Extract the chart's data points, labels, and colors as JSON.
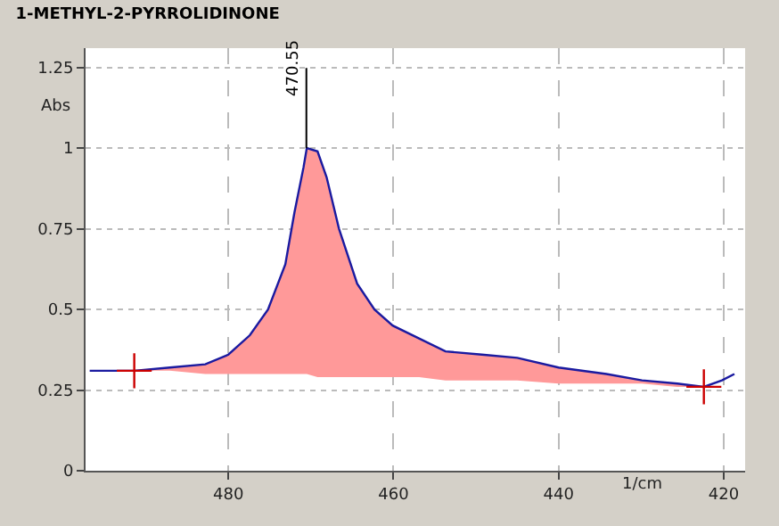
{
  "chart_data": {
    "type": "line",
    "title": "1-METHYL-2-PYRROLIDINONE",
    "xlabel": "1/cm",
    "ylabel": "Abs",
    "xlim": [
      497.3,
      417.4
    ],
    "xticks": [
      480,
      460,
      440,
      420
    ],
    "ylim": [
      0,
      1.31
    ],
    "yticks": [
      0,
      0.25,
      0.5,
      0.75,
      1,
      1.25
    ],
    "grid": true,
    "series": [
      {
        "color": "#1a1aa0",
        "x": [
          496.8,
          491.4,
          487.1,
          482.8,
          480,
          477.4,
          475.2,
          473.1,
          472.0,
          470.9,
          470.5,
          469.2,
          468.1,
          466.6,
          464.4,
          462.3,
          460.1,
          456.9,
          453.7,
          449.3,
          445.0,
          440.0,
          434.2,
          429.9,
          425.6,
          422.4,
          420.2,
          418.7
        ],
        "values": [
          0.31,
          0.31,
          0.32,
          0.33,
          0.36,
          0.42,
          0.5,
          0.64,
          0.8,
          0.94,
          1.0,
          0.99,
          0.91,
          0.75,
          0.58,
          0.5,
          0.45,
          0.41,
          0.37,
          0.36,
          0.35,
          0.32,
          0.3,
          0.28,
          0.27,
          0.26,
          0.28,
          0.3
        ],
        "lower": [
          null,
          0.31,
          0.31,
          0.3,
          0.3,
          0.3,
          0.3,
          0.3,
          0.3,
          0.3,
          0.3,
          0.29,
          0.29,
          0.29,
          0.29,
          0.29,
          0.29,
          0.29,
          0.28,
          0.28,
          0.28,
          0.27,
          0.27,
          0.27,
          0.26,
          0.26,
          null,
          null
        ],
        "upper": [
          null,
          0.31,
          0.32,
          0.33,
          0.36,
          0.42,
          0.5,
          0.64,
          0.8,
          0.94,
          1.0,
          0.99,
          0.91,
          0.75,
          0.58,
          0.5,
          0.45,
          0.41,
          0.37,
          0.36,
          0.35,
          0.32,
          0.3,
          0.28,
          0.27,
          0.26,
          null,
          null
        ]
      },
      {
        "type": "scatter",
        "color": "#cc0000",
        "marker": "cross",
        "x": [
          491.4,
          422.4
        ],
        "values": [
          0.31,
          0.26
        ]
      }
    ],
    "annotations": [
      {
        "text": "470.55",
        "x": 470.55,
        "y": 1.0
      }
    ]
  }
}
